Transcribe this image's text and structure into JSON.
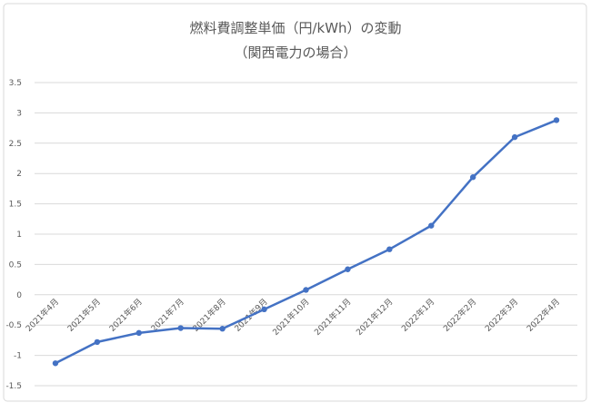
{
  "chart_data": {
    "type": "line",
    "title": "燃料費調整単価（円/kWh）の変動",
    "subtitle": "（関西電力の場合）",
    "categories": [
      "2021年4月",
      "2021年5月",
      "2021年6月",
      "2021年7月",
      "2021年8月",
      "2021年9月",
      "2021年10月",
      "2021年11月",
      "2021年12月",
      "2022年1月",
      "2022年2月",
      "2022年3月",
      "2022年4月"
    ],
    "series": [
      {
        "name": "燃料費調整単価",
        "color": "#4472c4",
        "values": [
          -1.13,
          -0.78,
          -0.63,
          -0.55,
          -0.56,
          -0.24,
          0.08,
          0.42,
          0.75,
          1.14,
          1.94,
          2.6,
          2.88
        ]
      }
    ],
    "ylim": [
      -1.5,
      3.5
    ],
    "yticks": [
      -1.5,
      -1,
      -0.5,
      0,
      0.5,
      1,
      1.5,
      2,
      2.5,
      3,
      3.5
    ],
    "grid": true
  }
}
